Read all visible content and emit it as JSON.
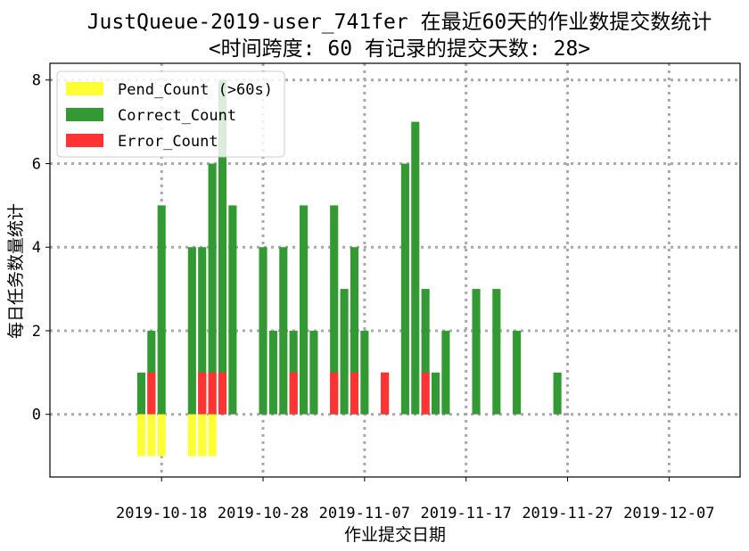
{
  "chart_data": {
    "type": "bar",
    "title_line1": "JustQueue-2019-user_741fer 在最近60天的作业数提交数统计",
    "title_line2": "<时间跨度: 60  有记录的提交天数: 28>",
    "xlabel": "作业提交日期",
    "ylabel": "每日任务数量统计",
    "x_ticks": [
      "2019-10-18",
      "2019-10-28",
      "2019-11-07",
      "2019-11-17",
      "2019-11-27",
      "2019-12-07"
    ],
    "y_ticks": [
      "0",
      "2",
      "4",
      "6",
      "8"
    ],
    "ylim": [
      -1.5,
      8.4
    ],
    "xlim": [
      "2019-10-07",
      "2019-12-14"
    ],
    "grid": true,
    "legend_position": "top-left",
    "series": [
      {
        "name": "Pend_Count (>60s)",
        "color": "#ffff33",
        "key": "pend"
      },
      {
        "name": "Correct_Count",
        "color": "#339933",
        "key": "correct"
      },
      {
        "name": "Error_Count",
        "color": "#ff3333",
        "key": "error"
      }
    ],
    "days": [
      {
        "date": "2019-10-16",
        "correct": 1,
        "error": 0,
        "pend": -1
      },
      {
        "date": "2019-10-17",
        "correct": 2,
        "error": 1,
        "pend": -1
      },
      {
        "date": "2019-10-18",
        "correct": 5,
        "error": 0,
        "pend": -1
      },
      {
        "date": "2019-10-21",
        "correct": 4,
        "error": 0,
        "pend": -1
      },
      {
        "date": "2019-10-22",
        "correct": 4,
        "error": 1,
        "pend": -1
      },
      {
        "date": "2019-10-23",
        "correct": 6,
        "error": 1,
        "pend": -1
      },
      {
        "date": "2019-10-24",
        "correct": 8,
        "error": 1,
        "pend": 0
      },
      {
        "date": "2019-10-25",
        "correct": 5,
        "error": 0,
        "pend": 0
      },
      {
        "date": "2019-10-28",
        "correct": 4,
        "error": 0,
        "pend": 0
      },
      {
        "date": "2019-10-29",
        "correct": 2,
        "error": 0,
        "pend": 0
      },
      {
        "date": "2019-10-30",
        "correct": 4,
        "error": 0,
        "pend": 0
      },
      {
        "date": "2019-10-31",
        "correct": 2,
        "error": 1,
        "pend": 0
      },
      {
        "date": "2019-11-01",
        "correct": 5,
        "error": 0,
        "pend": 0
      },
      {
        "date": "2019-11-02",
        "correct": 2,
        "error": 0,
        "pend": 0
      },
      {
        "date": "2019-11-04",
        "correct": 5,
        "error": 1,
        "pend": 0
      },
      {
        "date": "2019-11-05",
        "correct": 3,
        "error": 0,
        "pend": 0
      },
      {
        "date": "2019-11-06",
        "correct": 4,
        "error": 1,
        "pend": 0
      },
      {
        "date": "2019-11-07",
        "correct": 2,
        "error": 0,
        "pend": 0
      },
      {
        "date": "2019-11-09",
        "correct": 1,
        "error": 1,
        "pend": 0
      },
      {
        "date": "2019-11-11",
        "correct": 6,
        "error": 0,
        "pend": 0
      },
      {
        "date": "2019-11-12",
        "correct": 7,
        "error": 0,
        "pend": 0
      },
      {
        "date": "2019-11-13",
        "correct": 3,
        "error": 1,
        "pend": 0
      },
      {
        "date": "2019-11-14",
        "correct": 1,
        "error": 0,
        "pend": 0
      },
      {
        "date": "2019-11-15",
        "correct": 2,
        "error": 0,
        "pend": 0
      },
      {
        "date": "2019-11-18",
        "correct": 3,
        "error": 0,
        "pend": 0
      },
      {
        "date": "2019-11-20",
        "correct": 3,
        "error": 0,
        "pend": 0
      },
      {
        "date": "2019-11-22",
        "correct": 2,
        "error": 0,
        "pend": 0
      },
      {
        "date": "2019-11-26",
        "correct": 1,
        "error": 0,
        "pend": 0
      }
    ]
  }
}
